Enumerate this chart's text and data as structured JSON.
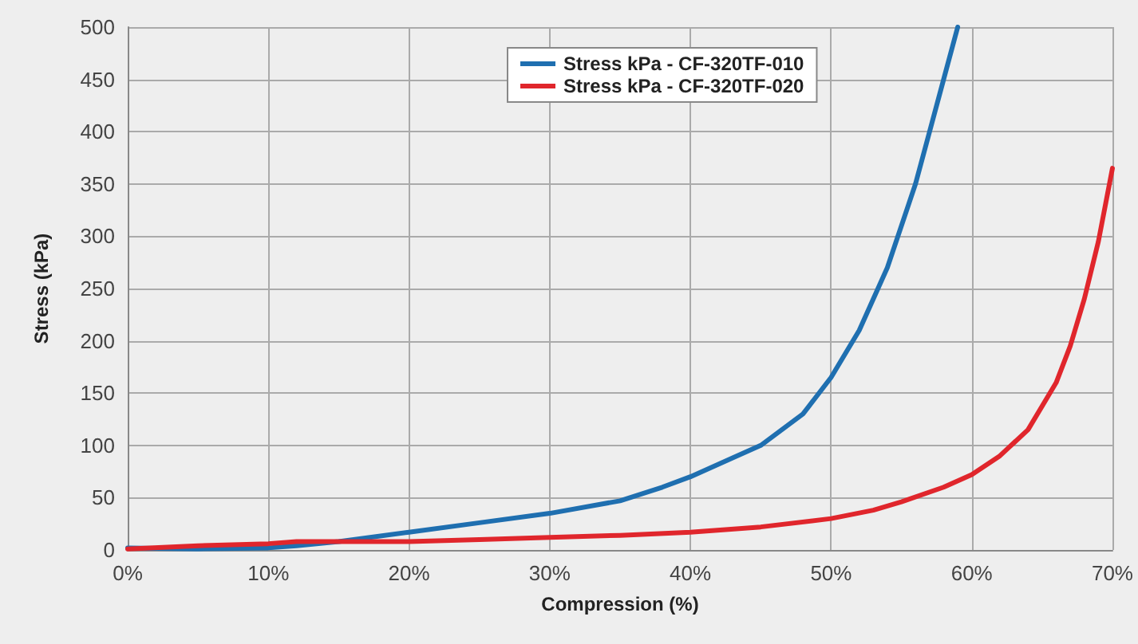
{
  "chart_data": {
    "type": "line",
    "xlabel": "Compression (%)",
    "ylabel": "Stress (kPa)",
    "xlim": [
      0,
      70
    ],
    "xticks": [
      {
        "value": 0,
        "label": "0%"
      },
      {
        "value": 10,
        "label": "10%"
      },
      {
        "value": 20,
        "label": "20%"
      },
      {
        "value": 30,
        "label": "30%"
      },
      {
        "value": 40,
        "label": "40%"
      },
      {
        "value": 50,
        "label": "50%"
      },
      {
        "value": 60,
        "label": "60%"
      },
      {
        "value": 70,
        "label": "70%"
      }
    ],
    "ylim": [
      0,
      500
    ],
    "yticks": [
      0,
      50,
      100,
      150,
      200,
      250,
      300,
      350,
      400,
      450,
      500
    ],
    "grid": true,
    "legend": "top",
    "marker": "none",
    "line_style": "solid",
    "series": [
      {
        "name": "Stress kPa - CF-320TF-010",
        "color": "#1f6fb0",
        "x": [
          0,
          5,
          10,
          12,
          15,
          20,
          25,
          30,
          35,
          38,
          40,
          43,
          45,
          48,
          50,
          52,
          54,
          56,
          57,
          58,
          59
        ],
        "values": [
          2,
          1,
          2,
          4,
          8,
          17,
          26,
          35,
          47,
          60,
          70,
          88,
          100,
          130,
          165,
          210,
          270,
          350,
          400,
          450,
          500
        ]
      },
      {
        "name": "Stress kPa - CF-320TF-020",
        "color": "#e0262c",
        "x": [
          0,
          5,
          10,
          12,
          15,
          20,
          25,
          30,
          35,
          40,
          45,
          50,
          53,
          55,
          58,
          60,
          62,
          64,
          66,
          67,
          68,
          69,
          70
        ],
        "values": [
          1,
          4,
          6,
          8,
          8,
          8,
          10,
          12,
          14,
          17,
          22,
          30,
          38,
          46,
          60,
          72,
          90,
          115,
          160,
          195,
          240,
          295,
          365
        ]
      }
    ]
  }
}
